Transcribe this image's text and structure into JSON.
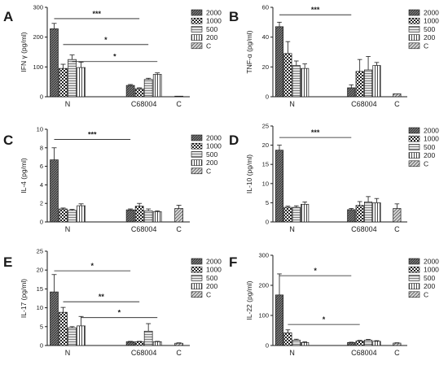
{
  "colors": {
    "axis": "#1a1a1a",
    "bar_fills": [
      "#777777",
      "#ffffff",
      "#dddddd",
      "#f4f4f4",
      "#cfcfcf"
    ]
  },
  "chart_data": [
    {
      "panel": "A",
      "type": "bar",
      "ylabel": "IFN γ (pg/ml)",
      "ylim": [
        0,
        300
      ],
      "yticks": [
        0,
        100,
        200,
        300
      ],
      "groups": [
        "N",
        "C68004",
        "C"
      ],
      "series": [
        {
          "name": "2000",
          "values": [
            228,
            38,
            null
          ],
          "errors": [
            18,
            3,
            null
          ]
        },
        {
          "name": "1000",
          "values": [
            95,
            27,
            null
          ],
          "errors": [
            14,
            3,
            null
          ]
        },
        {
          "name": "500",
          "values": [
            125,
            58,
            null
          ],
          "errors": [
            15,
            4,
            null
          ]
        },
        {
          "name": "200",
          "values": [
            98,
            75,
            null
          ],
          "errors": [
            18,
            5,
            null
          ]
        },
        {
          "name": "C",
          "values": [
            null,
            null,
            2
          ],
          "errors": [
            null,
            null,
            0
          ]
        }
      ],
      "significance": [
        {
          "label": "***",
          "from_x": "N:2000",
          "to_x": "C68004:1000",
          "y": 262
        },
        {
          "label": "*",
          "from_x": "N:1000",
          "to_x": "C68004:500",
          "y": 175
        },
        {
          "label": "*",
          "from_x": "N:500",
          "to_x": "C68004:200",
          "y": 118
        }
      ]
    },
    {
      "panel": "B",
      "type": "bar",
      "ylabel": "TNF-α (pg/ml)",
      "ylim": [
        0,
        60
      ],
      "yticks": [
        0,
        20,
        40,
        60
      ],
      "groups": [
        "N",
        "C68004",
        "C"
      ],
      "series": [
        {
          "name": "2000",
          "values": [
            47,
            6,
            null
          ],
          "errors": [
            3,
            2,
            null
          ]
        },
        {
          "name": "1000",
          "values": [
            29,
            17,
            null
          ],
          "errors": [
            8,
            8,
            null
          ]
        },
        {
          "name": "500",
          "values": [
            21,
            18,
            null
          ],
          "errors": [
            3,
            9,
            null
          ]
        },
        {
          "name": "200",
          "values": [
            19,
            21,
            null
          ],
          "errors": [
            3,
            2,
            null
          ]
        },
        {
          "name": "C",
          "values": [
            null,
            null,
            2
          ],
          "errors": [
            null,
            null,
            0
          ]
        }
      ],
      "significance": [
        {
          "label": "***",
          "from_x": "N:2000",
          "to_x": "C68004:2000",
          "y": 55
        }
      ]
    },
    {
      "panel": "C",
      "type": "bar",
      "ylabel": "IL-4 (pg/ml)",
      "ylim": [
        0,
        10
      ],
      "yticks": [
        0,
        2,
        4,
        6,
        8,
        10
      ],
      "groups": [
        "N",
        "C68004",
        "C"
      ],
      "series": [
        {
          "name": "2000",
          "values": [
            6.7,
            1.3,
            null
          ],
          "errors": [
            1.3,
            0.1,
            null
          ]
        },
        {
          "name": "1000",
          "values": [
            1.4,
            1.7,
            null
          ],
          "errors": [
            0.1,
            0.3,
            null
          ]
        },
        {
          "name": "500",
          "values": [
            1.25,
            1.2,
            null
          ],
          "errors": [
            0.1,
            0.2,
            null
          ]
        },
        {
          "name": "200",
          "values": [
            1.75,
            1.1,
            null
          ],
          "errors": [
            0.2,
            0.1,
            null
          ]
        },
        {
          "name": "C",
          "values": [
            null,
            null,
            1.45
          ],
          "errors": [
            null,
            null,
            0.35
          ]
        }
      ],
      "significance": [
        {
          "label": "***",
          "from_x": "N:2000",
          "to_x": "C68004:2000",
          "y": 8.9
        }
      ]
    },
    {
      "panel": "D",
      "type": "bar",
      "ylabel": "IL-10 (pg/ml)",
      "ylim": [
        0,
        25
      ],
      "yticks": [
        0,
        5,
        10,
        15,
        20,
        25
      ],
      "groups": [
        "N",
        "C68004",
        "C"
      ],
      "series": [
        {
          "name": "2000",
          "values": [
            18.7,
            3.2,
            null
          ],
          "errors": [
            1.3,
            0.3,
            null
          ]
        },
        {
          "name": "1000",
          "values": [
            3.8,
            4.3,
            null
          ],
          "errors": [
            0.3,
            1.0,
            null
          ]
        },
        {
          "name": "500",
          "values": [
            3.8,
            5.2,
            null
          ],
          "errors": [
            0.4,
            1.4,
            null
          ]
        },
        {
          "name": "200",
          "values": [
            4.6,
            5.0,
            null
          ],
          "errors": [
            0.6,
            1.1,
            null
          ]
        },
        {
          "name": "C",
          "values": [
            null,
            null,
            3.5
          ],
          "errors": [
            null,
            null,
            1.2
          ]
        }
      ],
      "significance": [
        {
          "label": "***",
          "from_x": "N:2000",
          "to_x": "C68004:2000",
          "y": 22
        }
      ]
    },
    {
      "panel": "E",
      "type": "bar",
      "ylabel": "IL-17 (pg/ml)",
      "ylim": [
        0,
        25
      ],
      "yticks": [
        0,
        5,
        10,
        15,
        20,
        25
      ],
      "groups": [
        "N",
        "C68004",
        "C"
      ],
      "series": [
        {
          "name": "2000",
          "values": [
            14.2,
            1.0,
            null
          ],
          "errors": [
            4.6,
            0.1,
            null
          ]
        },
        {
          "name": "1000",
          "values": [
            8.8,
            1.0,
            null
          ],
          "errors": [
            1.3,
            0.1,
            null
          ]
        },
        {
          "name": "500",
          "values": [
            4.7,
            3.8,
            null
          ],
          "errors": [
            0.3,
            2.0,
            null
          ]
        },
        {
          "name": "200",
          "values": [
            5.2,
            1.0,
            null
          ],
          "errors": [
            2.5,
            0.1,
            null
          ]
        },
        {
          "name": "C",
          "values": [
            null,
            null,
            0.6
          ],
          "errors": [
            null,
            null,
            0.1
          ]
        }
      ],
      "significance": [
        {
          "label": "*",
          "from_x": "N:2000",
          "to_x": "C68004:2000",
          "y": 19.8
        },
        {
          "label": "**",
          "from_x": "N:1000",
          "to_x": "C68004:1000",
          "y": 11.6
        },
        {
          "label": "*",
          "from_x": "N:200",
          "to_x": "C68004:200",
          "y": 7.4
        }
      ]
    },
    {
      "panel": "F",
      "type": "bar",
      "ylabel": "IL-22 (pg/ml)",
      "ylim": [
        0,
        300
      ],
      "yticks": [
        0,
        100,
        200,
        300
      ],
      "groups": [
        "N",
        "C68004",
        "C"
      ],
      "series": [
        {
          "name": "2000",
          "values": [
            168,
            10,
            null
          ],
          "errors": [
            70,
            1,
            null
          ]
        },
        {
          "name": "1000",
          "values": [
            42,
            15,
            null
          ],
          "errors": [
            10,
            2,
            null
          ]
        },
        {
          "name": "500",
          "values": [
            18,
            18,
            null
          ],
          "errors": [
            3,
            2,
            null
          ]
        },
        {
          "name": "200",
          "values": [
            10,
            14,
            null
          ],
          "errors": [
            2,
            2,
            null
          ]
        },
        {
          "name": "C",
          "values": [
            null,
            null,
            8
          ],
          "errors": [
            null,
            null,
            1
          ]
        }
      ],
      "significance": [
        {
          "label": "*",
          "from_x": "N:2000",
          "to_x": "C68004:2000",
          "y": 232
        },
        {
          "label": "*",
          "from_x": "N:1000",
          "to_x": "C68004:1000",
          "y": 70
        }
      ]
    }
  ]
}
